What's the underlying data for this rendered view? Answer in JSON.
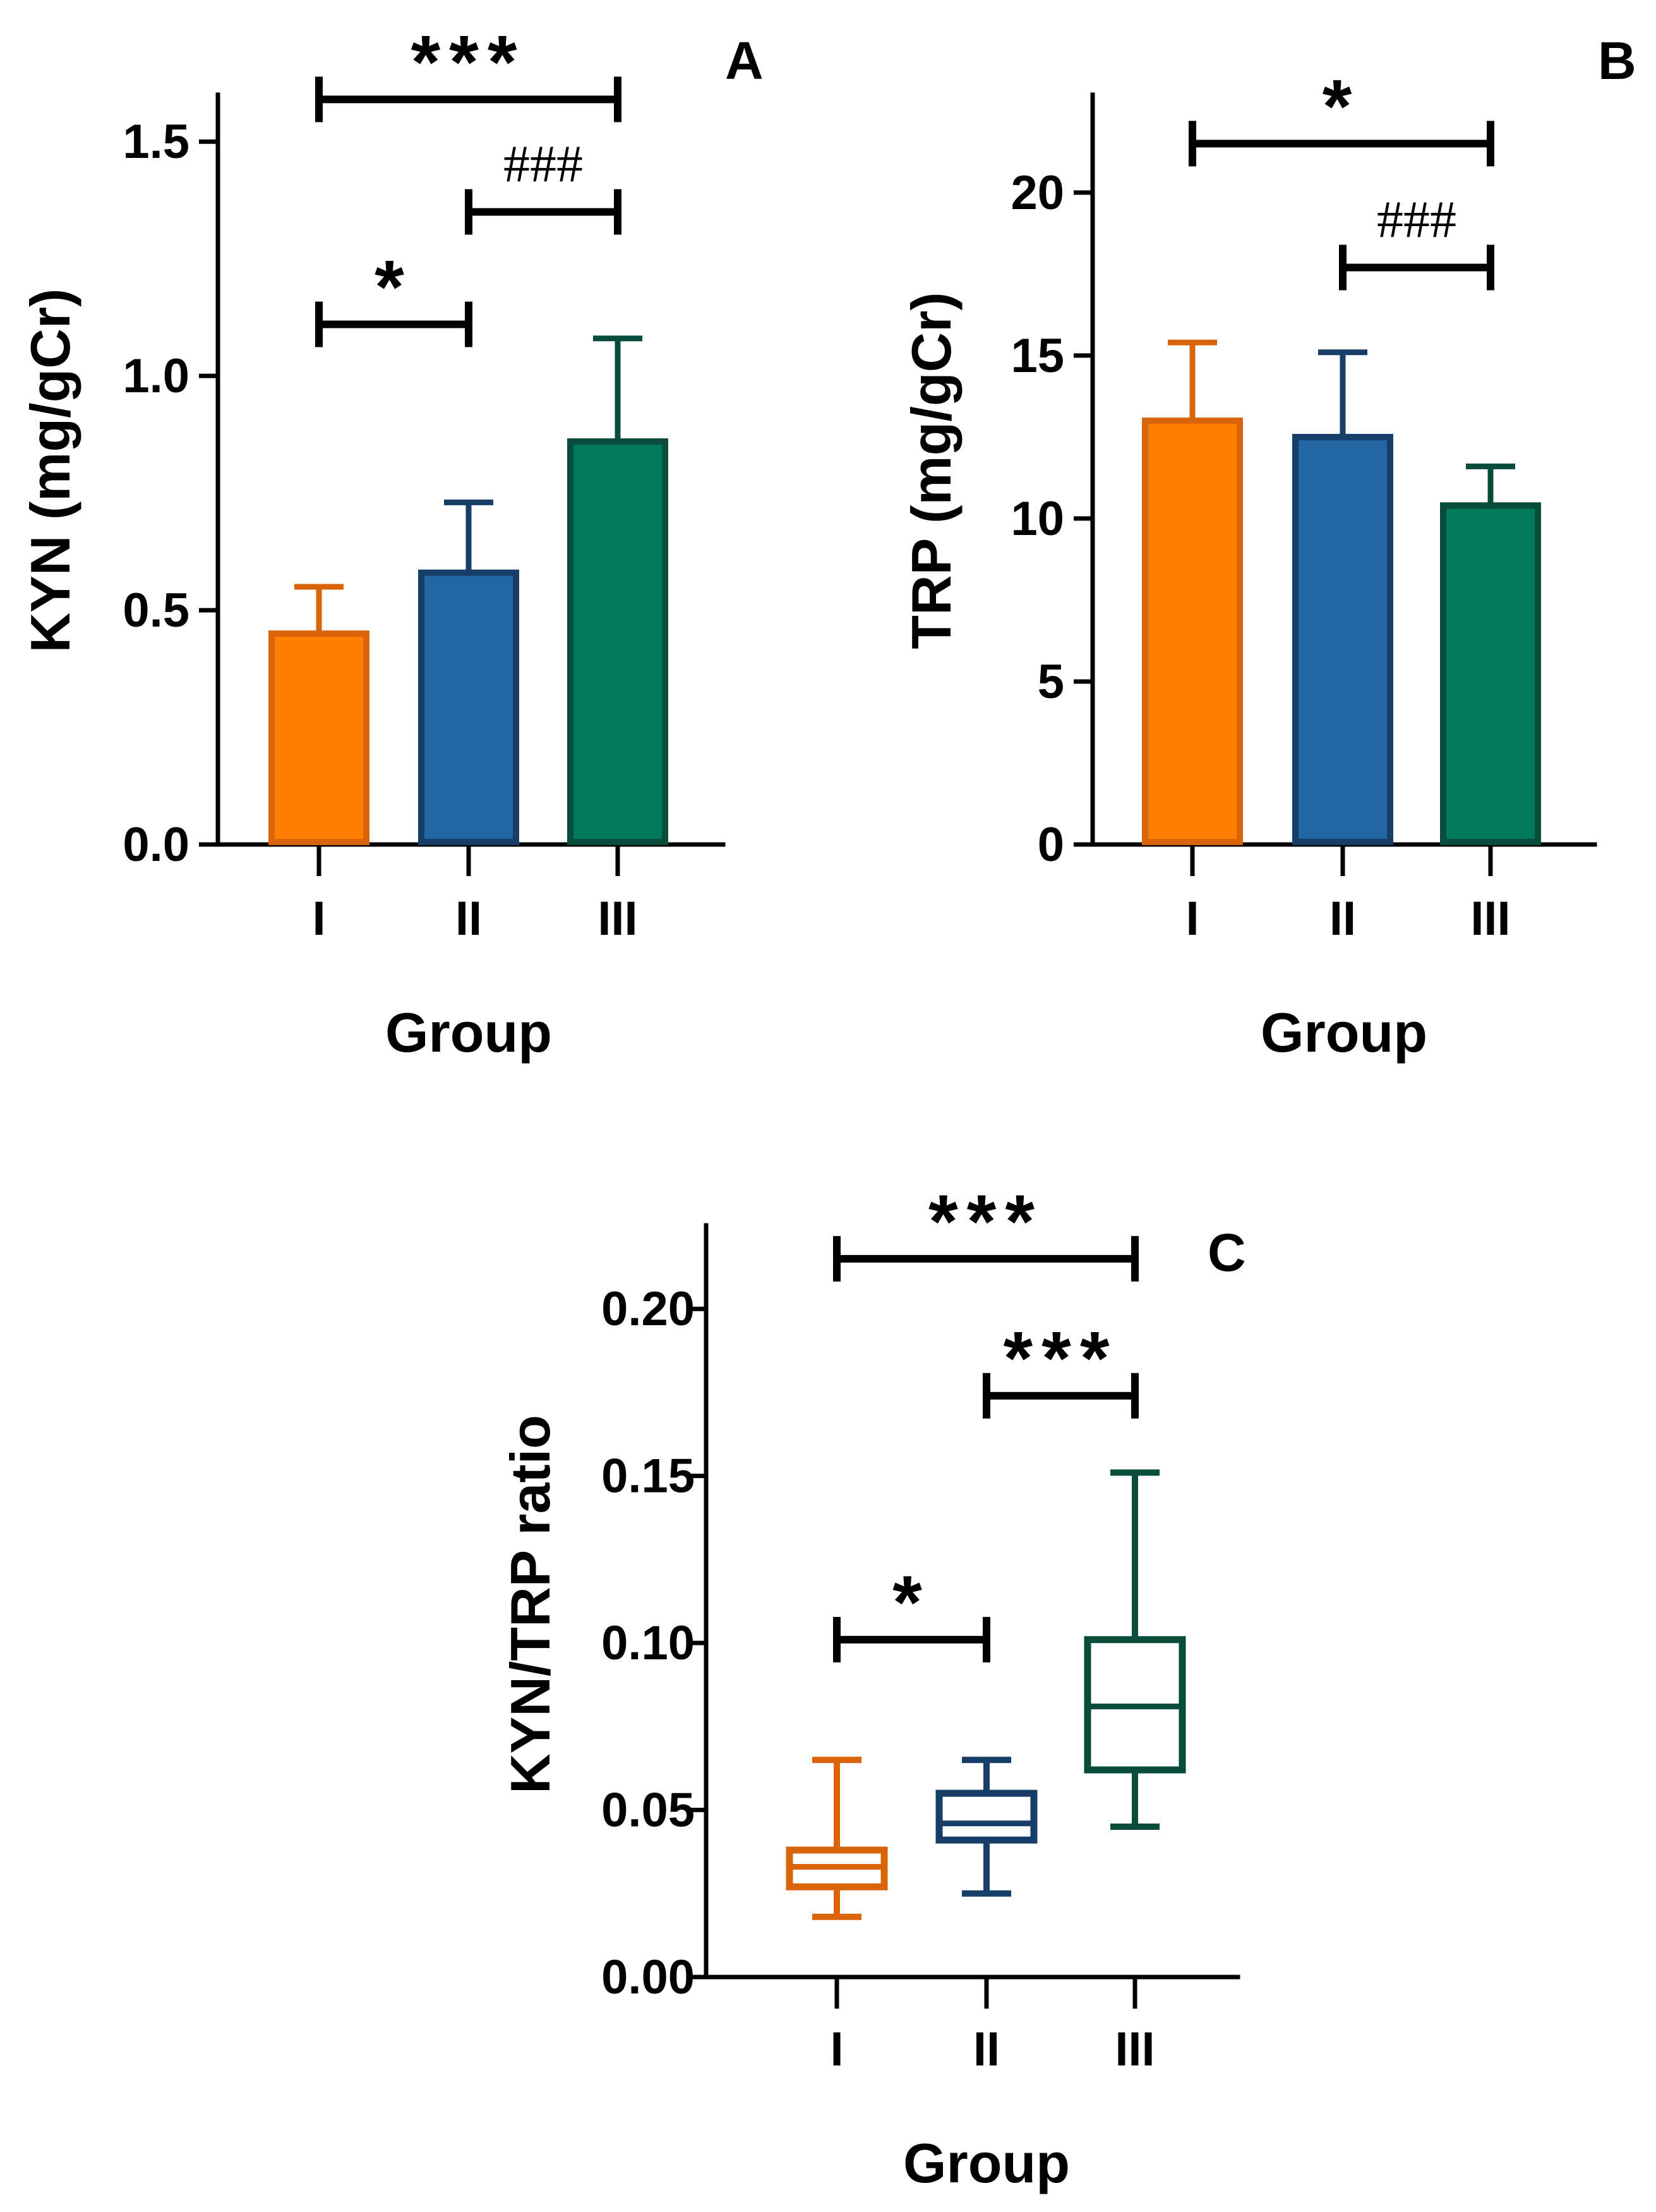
{
  "colors": {
    "I": {
      "fill": "#ff7f00",
      "stroke": "#d9640a"
    },
    "II": {
      "fill": "#2266a3",
      "stroke": "#163e66"
    },
    "III": {
      "fill": "#00795a",
      "stroke": "#0a4c3c"
    },
    "axis": "#000000"
  },
  "chart_data": [
    {
      "type": "bar",
      "panel": "A",
      "xlabel": "Group",
      "ylabel": "KYN (mg/gCr)",
      "categories": [
        "I",
        "II",
        "III"
      ],
      "values": [
        0.45,
        0.58,
        0.86
      ],
      "errors": [
        0.1,
        0.15,
        0.22
      ],
      "ylim": [
        0,
        1.6
      ],
      "yticks": [
        0.0,
        0.5,
        1.0,
        1.5
      ],
      "ytick_labels": [
        "0.0",
        "0.5",
        "1.0",
        "1.5"
      ],
      "significance": [
        {
          "from": "I",
          "to": "III",
          "label": "***",
          "y": 1.59
        },
        {
          "from": "II",
          "to": "III",
          "label": "###",
          "y": 1.35
        },
        {
          "from": "I",
          "to": "II",
          "label": "*",
          "y": 1.11
        }
      ]
    },
    {
      "type": "bar",
      "panel": "B",
      "xlabel": "Group",
      "ylabel": "TRP (mg/gCr)",
      "categories": [
        "I",
        "II",
        "III"
      ],
      "values": [
        13.0,
        12.5,
        10.4
      ],
      "errors": [
        2.4,
        2.6,
        1.2
      ],
      "ylim": [
        0,
        23
      ],
      "yticks": [
        0,
        5,
        10,
        15,
        20
      ],
      "ytick_labels": [
        "0",
        "5",
        "10",
        "15",
        "20"
      ],
      "significance": [
        {
          "from": "I",
          "to": "III",
          "label": "*",
          "y": 21.5
        },
        {
          "from": "II",
          "to": "III",
          "label": "###",
          "y": 17.7
        }
      ]
    },
    {
      "type": "box",
      "panel": "C",
      "xlabel": "Group",
      "ylabel": "KYN/TRP ratio",
      "categories": [
        "I",
        "II",
        "III"
      ],
      "boxes": [
        {
          "group": "I",
          "min": 0.018,
          "q1": 0.027,
          "median": 0.033,
          "q3": 0.038,
          "max": 0.065
        },
        {
          "group": "II",
          "min": 0.025,
          "q1": 0.041,
          "median": 0.046,
          "q3": 0.055,
          "max": 0.065
        },
        {
          "group": "III",
          "min": 0.045,
          "q1": 0.062,
          "median": 0.081,
          "q3": 0.101,
          "max": 0.151
        }
      ],
      "ylim": [
        0,
        0.225
      ],
      "yticks": [
        0.0,
        0.05,
        0.1,
        0.15,
        0.2
      ],
      "ytick_labels": [
        "0.00",
        "0.05",
        "0.10",
        "0.15",
        "0.20"
      ],
      "significance": [
        {
          "from": "I",
          "to": "III",
          "label": "***",
          "y": 0.215
        },
        {
          "from": "II",
          "to": "III",
          "label": "***",
          "y": 0.174
        },
        {
          "from": "I",
          "to": "II",
          "label": "*",
          "y": 0.101
        }
      ]
    }
  ]
}
